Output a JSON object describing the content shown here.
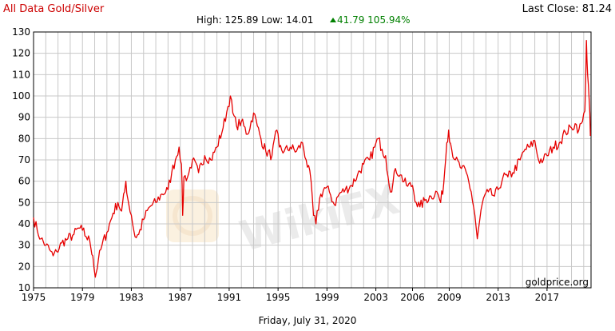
{
  "header": {
    "title": "All Data Gold/Silver",
    "last_close": "Last Close: 81.24",
    "high_low": "High: 125.89 Low: 14.01",
    "change": "41.79 105.94%"
  },
  "footer": {
    "date": "Friday, July 31, 2020",
    "source": "goldprice.org"
  },
  "watermark": "WikiFX",
  "colors": {
    "line": "#e60000",
    "title": "#cc0000",
    "change": "#008000",
    "grid": "#c8c8c8",
    "axis": "#000000"
  },
  "chart_data": {
    "type": "line",
    "title": "All Data Gold/Silver",
    "xlabel": "",
    "ylabel": "",
    "xlim": [
      1975.0,
      2020.6
    ],
    "ylim": [
      10,
      130
    ],
    "yticks": [
      10,
      20,
      30,
      40,
      50,
      60,
      70,
      80,
      90,
      100,
      110,
      120,
      130
    ],
    "xticks": [
      1975,
      1979,
      1983,
      1987,
      1991,
      1995,
      1999,
      2003,
      2006,
      2009,
      2013,
      2017
    ],
    "grid": true,
    "legend": "none",
    "high": 125.89,
    "low": 14.01,
    "last_close": 81.24,
    "change": 41.79,
    "change_pct": 105.94,
    "series": [
      {
        "values": [
          [
            1975.0,
            43
          ],
          [
            1975.3,
            37
          ],
          [
            1975.6,
            33
          ],
          [
            1976.0,
            30
          ],
          [
            1976.3,
            28
          ],
          [
            1976.6,
            25
          ],
          [
            1976.9,
            27
          ],
          [
            1977.3,
            31
          ],
          [
            1977.8,
            33
          ],
          [
            1978.3,
            35
          ],
          [
            1978.7,
            38
          ],
          [
            1979.0,
            37
          ],
          [
            1979.3,
            34
          ],
          [
            1979.6,
            32
          ],
          [
            1979.85,
            25
          ],
          [
            1980.05,
            15
          ],
          [
            1980.3,
            23
          ],
          [
            1980.6,
            30
          ],
          [
            1981.0,
            36
          ],
          [
            1981.5,
            45
          ],
          [
            1981.9,
            50
          ],
          [
            1982.2,
            46
          ],
          [
            1982.45,
            55
          ],
          [
            1982.55,
            60
          ],
          [
            1982.7,
            52
          ],
          [
            1983.0,
            44
          ],
          [
            1983.3,
            34
          ],
          [
            1983.6,
            35
          ],
          [
            1984.0,
            42
          ],
          [
            1984.5,
            48
          ],
          [
            1985.0,
            50
          ],
          [
            1985.5,
            54
          ],
          [
            1986.0,
            56
          ],
          [
            1986.3,
            64
          ],
          [
            1986.6,
            70
          ],
          [
            1986.9,
            76
          ],
          [
            1987.1,
            68
          ],
          [
            1987.2,
            44
          ],
          [
            1987.3,
            62
          ],
          [
            1987.6,
            62
          ],
          [
            1988.0,
            70
          ],
          [
            1988.5,
            64
          ],
          [
            1989.0,
            72
          ],
          [
            1989.5,
            70
          ],
          [
            1990.0,
            76
          ],
          [
            1990.5,
            85
          ],
          [
            1990.9,
            95
          ],
          [
            1991.1,
            100
          ],
          [
            1991.3,
            92
          ],
          [
            1991.6,
            86
          ],
          [
            1992.0,
            88
          ],
          [
            1992.5,
            82
          ],
          [
            1993.0,
            92
          ],
          [
            1993.3,
            86
          ],
          [
            1993.6,
            80
          ],
          [
            1994.0,
            74
          ],
          [
            1994.5,
            72
          ],
          [
            1994.9,
            84
          ],
          [
            1995.1,
            76
          ],
          [
            1995.5,
            74
          ],
          [
            1996.0,
            76
          ],
          [
            1996.5,
            74
          ],
          [
            1997.0,
            78
          ],
          [
            1997.3,
            70
          ],
          [
            1997.7,
            60
          ],
          [
            1997.9,
            44
          ],
          [
            1998.1,
            40
          ],
          [
            1998.4,
            52
          ],
          [
            1998.8,
            57
          ],
          [
            1999.2,
            55
          ],
          [
            1999.6,
            49
          ],
          [
            2000.0,
            54
          ],
          [
            2000.5,
            56
          ],
          [
            2001.0,
            58
          ],
          [
            2001.5,
            63
          ],
          [
            2002.0,
            68
          ],
          [
            2002.5,
            70
          ],
          [
            2002.9,
            76
          ],
          [
            2003.2,
            80
          ],
          [
            2003.5,
            75
          ],
          [
            2003.8,
            72
          ],
          [
            2004.0,
            62
          ],
          [
            2004.3,
            55
          ],
          [
            2004.6,
            66
          ],
          [
            2005.0,
            63
          ],
          [
            2005.5,
            58
          ],
          [
            2006.0,
            58
          ],
          [
            2006.3,
            50
          ],
          [
            2006.6,
            48
          ],
          [
            2007.0,
            51
          ],
          [
            2007.5,
            53
          ],
          [
            2008.0,
            55
          ],
          [
            2008.3,
            50
          ],
          [
            2008.55,
            59
          ],
          [
            2008.8,
            78
          ],
          [
            2008.95,
            84
          ],
          [
            2009.2,
            75
          ],
          [
            2009.5,
            70
          ],
          [
            2010.0,
            66
          ],
          [
            2010.4,
            64
          ],
          [
            2010.8,
            55
          ],
          [
            2011.1,
            44
          ],
          [
            2011.3,
            33
          ],
          [
            2011.5,
            42
          ],
          [
            2011.8,
            52
          ],
          [
            2012.2,
            55
          ],
          [
            2012.7,
            53
          ],
          [
            2013.0,
            56
          ],
          [
            2013.4,
            62
          ],
          [
            2013.8,
            62
          ],
          [
            2014.2,
            64
          ],
          [
            2014.8,
            70
          ],
          [
            2015.2,
            75
          ],
          [
            2015.6,
            76
          ],
          [
            2016.0,
            79
          ],
          [
            2016.3,
            70
          ],
          [
            2016.7,
            70
          ],
          [
            2017.0,
            72
          ],
          [
            2017.5,
            76
          ],
          [
            2018.0,
            78
          ],
          [
            2018.5,
            83
          ],
          [
            2019.0,
            85
          ],
          [
            2019.3,
            87
          ],
          [
            2019.6,
            84
          ],
          [
            2019.9,
            88
          ],
          [
            2020.1,
            93
          ],
          [
            2020.22,
            126
          ],
          [
            2020.32,
            110
          ],
          [
            2020.45,
            98
          ],
          [
            2020.55,
            81.24
          ]
        ]
      }
    ]
  }
}
